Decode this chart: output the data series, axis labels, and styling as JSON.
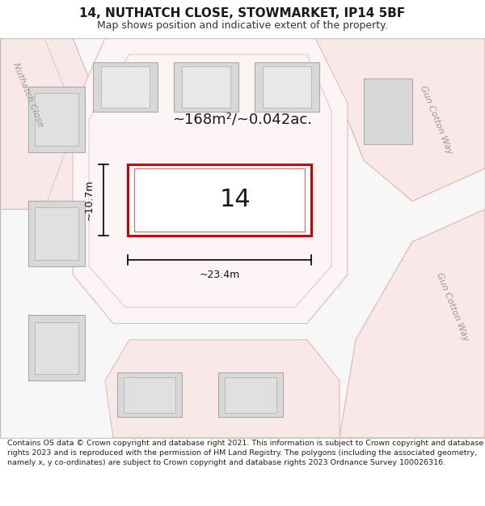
{
  "title": "14, NUTHATCH CLOSE, STOWMARKET, IP14 5BF",
  "subtitle": "Map shows position and indicative extent of the property.",
  "footer": "Contains OS data © Crown copyright and database right 2021. This information is subject to Crown copyright and database rights 2023 and is reproduced with the permission of HM Land Registry. The polygons (including the associated geometry, namely x, y co-ordinates) are subject to Crown copyright and database rights 2023 Ordnance Survey 100026316.",
  "area_label": "~168m²/~0.042ac.",
  "width_label": "~23.4m",
  "height_label": "~10.7m",
  "plot_number": "14",
  "map_bg": "#f7f7f7",
  "road_fill": "#f9e8e8",
  "road_edge": "#e8b8b8",
  "plot_road_fill": "#fdeaea",
  "plot_road_edge": "#e8a0a0",
  "building_fill": "#d8d8d8",
  "building_outline": "#aaaaaa",
  "plot_outline_color": "#cc0000",
  "plot_fill": "#ffffff",
  "street_text_color": "#999999",
  "dim_color": "#111111",
  "title_fontsize": 11,
  "subtitle_fontsize": 9,
  "footer_fontsize": 6.8
}
